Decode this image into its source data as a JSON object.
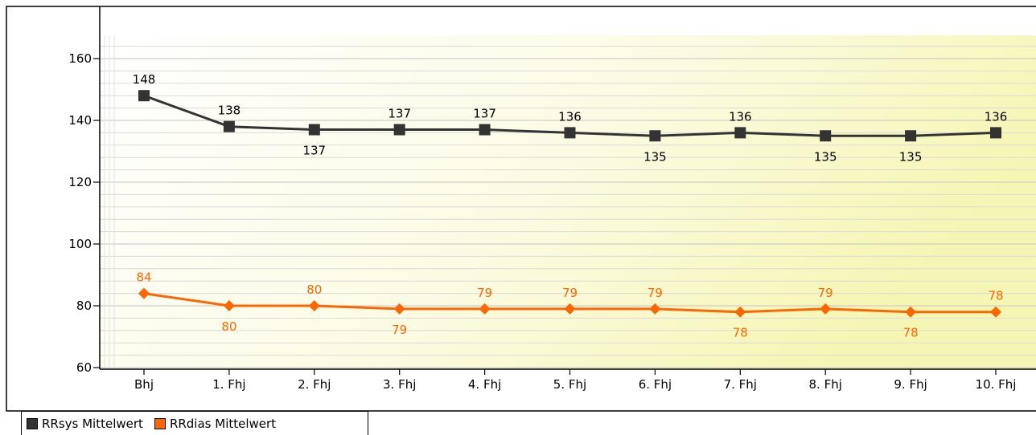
{
  "chart_data": {
    "type": "line",
    "categories": [
      "Bhj",
      "1. Fhj",
      "2. Fhj",
      "3. Fhj",
      "4. Fhj",
      "5. Fhj",
      "6. Fhj",
      "7. Fhj",
      "8. Fhj",
      "9. Fhj",
      "10. Fhj"
    ],
    "series": [
      {
        "name": "RRsys Mittelwert",
        "values": [
          148,
          138,
          137,
          137,
          137,
          136,
          135,
          136,
          135,
          135,
          136
        ],
        "color": "#333333",
        "marker": "square"
      },
      {
        "name": "RRdias Mittelwert",
        "values": [
          84,
          80,
          80,
          79,
          79,
          79,
          79,
          78,
          79,
          78,
          78
        ],
        "color": "#ff6600",
        "marker": "diamond"
      }
    ],
    "ylim": [
      58,
      170
    ],
    "yticks": [
      60,
      80,
      100,
      120,
      140,
      160
    ],
    "grid": true,
    "legend_position": "bottom-left",
    "title": "",
    "xlabel": "",
    "ylabel": ""
  }
}
